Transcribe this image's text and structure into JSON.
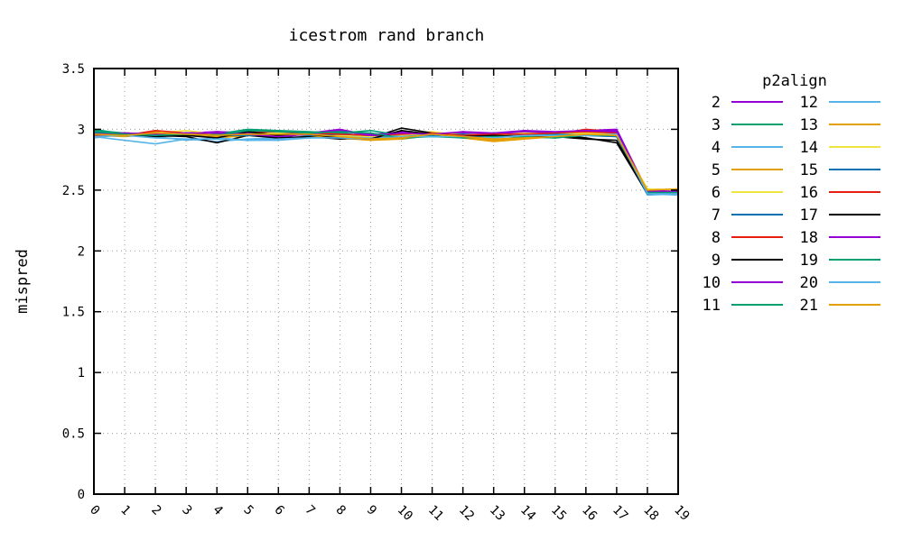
{
  "chart_data": {
    "type": "line",
    "title": "icestrom rand branch",
    "xlabel": "",
    "ylabel": "mispred",
    "xlim": [
      0,
      19
    ],
    "ylim": [
      0,
      3.5
    ],
    "x": [
      0,
      1,
      2,
      3,
      4,
      5,
      6,
      7,
      8,
      9,
      10,
      11,
      12,
      13,
      14,
      15,
      16,
      17,
      18,
      19
    ],
    "x_tick_labels": [
      "0",
      "1",
      "2",
      "3",
      "4",
      "5",
      "6",
      "7",
      "8",
      "9",
      "10",
      "11",
      "12",
      "13",
      "14",
      "15",
      "16",
      "17",
      "18",
      "19"
    ],
    "y_ticks": [
      0,
      0.5,
      1,
      1.5,
      2,
      2.5,
      3,
      3.5
    ],
    "y_tick_labels": [
      "0",
      "0.5",
      "1",
      "1.5",
      "2",
      "2.5",
      "3",
      "3.5"
    ],
    "grid": true,
    "legend_title": "p2align",
    "legend_position": "right",
    "series": [
      {
        "name": "2",
        "color": "#9400d3",
        "values": [
          2.95,
          2.97,
          2.96,
          2.97,
          2.98,
          2.97,
          2.93,
          2.97,
          3.0,
          2.95,
          2.98,
          2.96,
          2.97,
          2.96,
          2.97,
          2.96,
          2.99,
          3.0,
          2.49,
          2.48
        ]
      },
      {
        "name": "3",
        "color": "#009e73",
        "values": [
          3.0,
          2.96,
          2.95,
          2.96,
          2.94,
          2.99,
          2.98,
          2.97,
          2.96,
          2.95,
          2.92,
          2.95,
          2.93,
          2.95,
          2.94,
          2.93,
          2.96,
          2.95,
          2.48,
          2.49
        ]
      },
      {
        "name": "4",
        "color": "#56b4e9",
        "values": [
          2.94,
          2.91,
          2.88,
          2.92,
          2.9,
          2.92,
          2.93,
          2.94,
          2.95,
          2.92,
          2.93,
          2.95,
          2.94,
          2.94,
          2.95,
          2.96,
          2.95,
          2.94,
          2.46,
          2.47
        ]
      },
      {
        "name": "5",
        "color": "#e69f00",
        "values": [
          2.96,
          2.95,
          2.98,
          2.97,
          2.93,
          2.95,
          2.96,
          2.97,
          2.95,
          2.92,
          2.93,
          2.97,
          2.93,
          2.91,
          2.93,
          2.94,
          2.96,
          2.95,
          2.51,
          2.5
        ]
      },
      {
        "name": "6",
        "color": "#f0e442",
        "values": [
          2.97,
          2.96,
          2.97,
          2.99,
          2.96,
          2.97,
          2.95,
          2.96,
          2.94,
          2.95,
          2.96,
          2.98,
          2.95,
          2.94,
          2.96,
          2.97,
          2.98,
          2.97,
          2.5,
          2.51
        ]
      },
      {
        "name": "7",
        "color": "#0072b2",
        "values": [
          2.98,
          2.97,
          2.96,
          2.95,
          2.94,
          2.96,
          2.97,
          2.95,
          2.97,
          2.94,
          2.95,
          2.96,
          2.94,
          2.95,
          2.96,
          2.95,
          2.97,
          2.96,
          2.48,
          2.47
        ]
      },
      {
        "name": "8",
        "color": "#e51e10",
        "values": [
          2.96,
          2.95,
          2.99,
          2.97,
          2.96,
          2.98,
          2.97,
          2.96,
          2.95,
          2.93,
          2.94,
          2.96,
          2.95,
          2.96,
          2.97,
          2.96,
          3.0,
          2.98,
          2.49,
          2.49
        ]
      },
      {
        "name": "9",
        "color": "#000000",
        "values": [
          2.95,
          2.96,
          2.95,
          2.94,
          2.89,
          2.95,
          2.93,
          2.94,
          2.92,
          2.93,
          3.01,
          2.97,
          2.95,
          2.94,
          2.95,
          2.95,
          2.93,
          2.89,
          2.47,
          2.48
        ]
      },
      {
        "name": "10",
        "color": "#9400d3",
        "values": [
          2.97,
          2.96,
          2.97,
          2.96,
          2.98,
          2.97,
          2.95,
          2.96,
          2.98,
          2.96,
          2.97,
          2.95,
          2.98,
          2.96,
          2.98,
          2.97,
          2.99,
          2.99,
          2.5,
          2.49
        ]
      },
      {
        "name": "11",
        "color": "#009e73",
        "values": [
          2.99,
          2.97,
          2.96,
          2.97,
          2.96,
          3.0,
          2.99,
          2.98,
          2.97,
          2.99,
          2.95,
          2.96,
          2.94,
          2.95,
          2.93,
          2.94,
          2.95,
          2.96,
          2.48,
          2.48
        ]
      },
      {
        "name": "12",
        "color": "#56b4e9",
        "values": [
          2.93,
          2.96,
          2.94,
          2.91,
          2.93,
          2.91,
          2.91,
          2.93,
          2.94,
          2.93,
          2.95,
          2.94,
          2.95,
          2.93,
          2.96,
          2.95,
          2.96,
          2.97,
          2.47,
          2.46
        ]
      },
      {
        "name": "13",
        "color": "#e69f00",
        "values": [
          2.95,
          2.94,
          2.96,
          2.95,
          2.94,
          2.95,
          2.96,
          2.95,
          2.93,
          2.91,
          2.92,
          2.96,
          2.93,
          2.9,
          2.92,
          2.94,
          2.95,
          2.96,
          2.5,
          2.51
        ]
      },
      {
        "name": "14",
        "color": "#f0e442",
        "values": [
          2.96,
          2.97,
          2.96,
          2.97,
          2.95,
          2.96,
          2.97,
          2.96,
          2.95,
          2.94,
          2.95,
          2.97,
          2.96,
          2.95,
          2.97,
          2.96,
          2.97,
          2.96,
          2.51,
          2.5
        ]
      },
      {
        "name": "15",
        "color": "#0072b2",
        "values": [
          2.97,
          2.96,
          2.95,
          2.96,
          2.95,
          2.95,
          2.96,
          2.95,
          2.96,
          2.95,
          2.94,
          2.95,
          2.96,
          2.94,
          2.95,
          2.96,
          2.95,
          2.94,
          2.47,
          2.48
        ]
      },
      {
        "name": "16",
        "color": "#e51e10",
        "values": [
          2.95,
          2.96,
          2.97,
          2.96,
          2.97,
          2.96,
          2.96,
          2.97,
          2.96,
          2.95,
          2.96,
          2.97,
          2.95,
          2.96,
          2.96,
          2.97,
          2.98,
          2.97,
          2.49,
          2.48
        ]
      },
      {
        "name": "17",
        "color": "#000000",
        "values": [
          2.96,
          2.95,
          2.94,
          2.95,
          2.93,
          2.98,
          2.95,
          2.96,
          2.93,
          2.92,
          2.99,
          2.96,
          2.94,
          2.95,
          2.94,
          2.94,
          2.92,
          2.91,
          2.47,
          2.48
        ]
      },
      {
        "name": "18",
        "color": "#9400d3",
        "values": [
          2.96,
          2.97,
          2.96,
          2.97,
          2.97,
          2.96,
          2.94,
          2.96,
          2.99,
          2.95,
          2.97,
          2.96,
          2.98,
          2.97,
          2.99,
          2.98,
          2.99,
          2.98,
          2.49,
          2.49
        ]
      },
      {
        "name": "19",
        "color": "#009e73",
        "values": [
          2.98,
          2.96,
          2.95,
          2.96,
          2.95,
          2.99,
          2.98,
          2.97,
          2.98,
          2.97,
          2.93,
          2.94,
          2.93,
          2.94,
          2.94,
          2.93,
          2.95,
          2.95,
          2.48,
          2.48
        ]
      },
      {
        "name": "20",
        "color": "#56b4e9",
        "values": [
          2.94,
          2.95,
          2.93,
          2.92,
          2.92,
          2.91,
          2.92,
          2.93,
          2.93,
          2.92,
          2.94,
          2.94,
          2.94,
          2.93,
          2.95,
          2.95,
          2.95,
          2.96,
          2.47,
          2.47
        ]
      },
      {
        "name": "21",
        "color": "#e69f00",
        "values": [
          2.96,
          2.95,
          2.97,
          2.96,
          2.95,
          2.96,
          2.96,
          2.96,
          2.94,
          2.92,
          2.93,
          2.96,
          2.94,
          2.92,
          2.93,
          2.94,
          2.96,
          2.95,
          2.5,
          2.51
        ]
      }
    ]
  }
}
